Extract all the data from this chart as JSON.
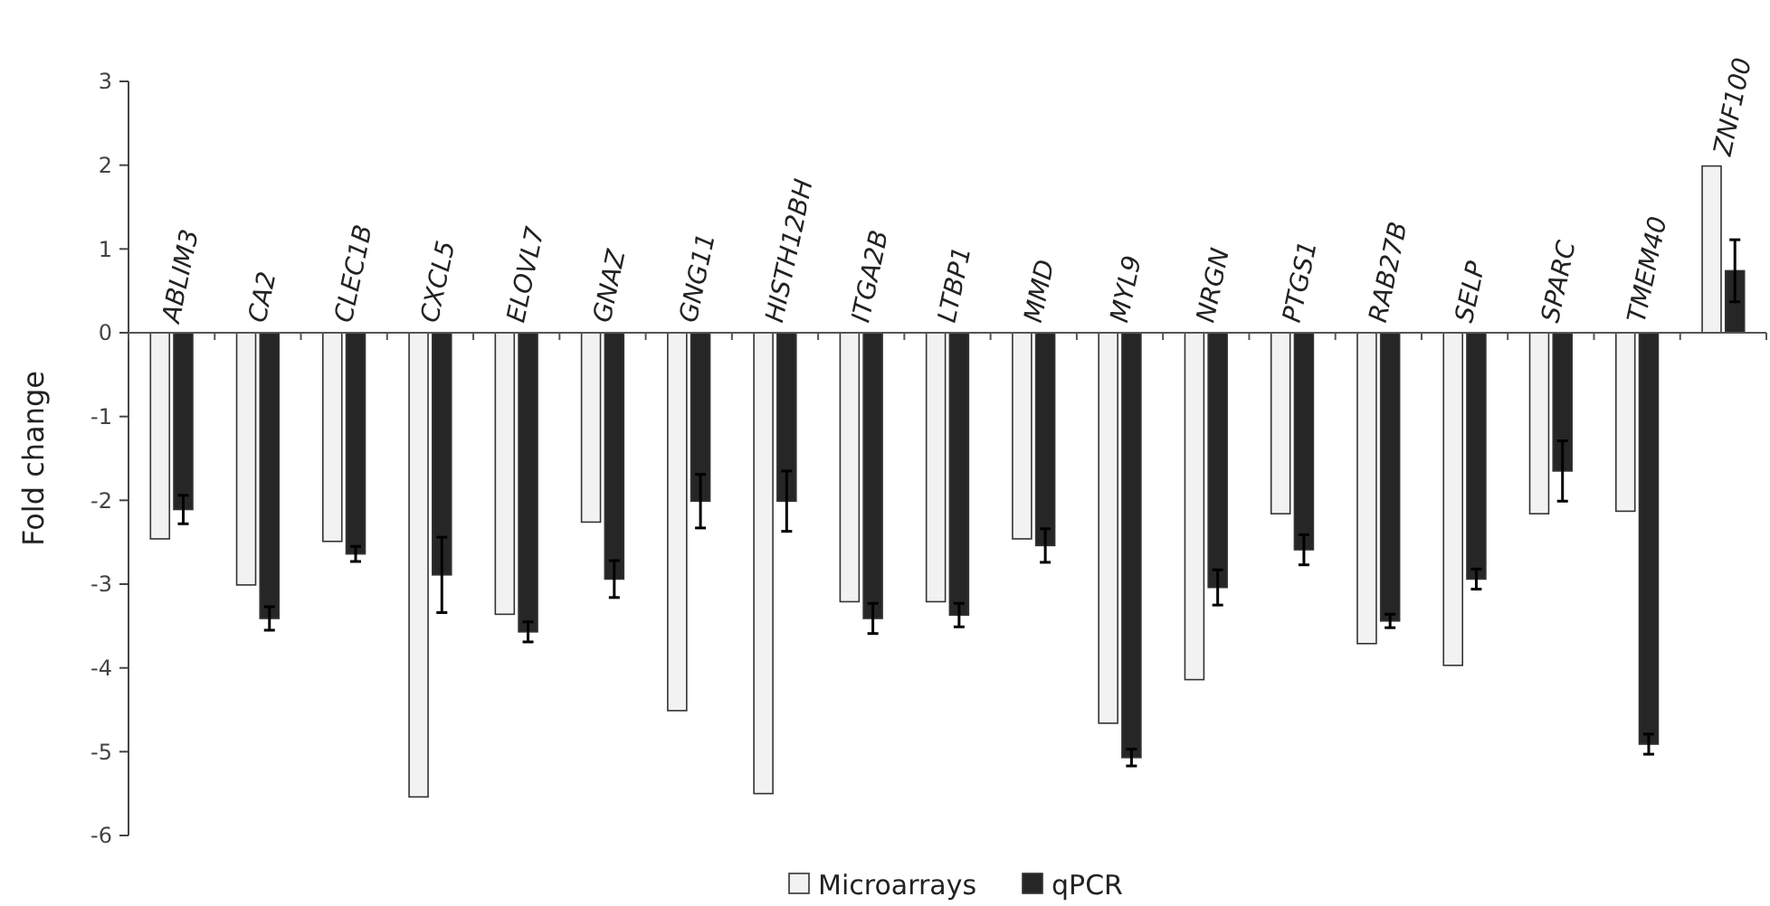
{
  "chart_data": {
    "type": "bar",
    "ylabel": "Fold change",
    "categories": [
      "ABLIM3",
      "CA2",
      "CLEC1B",
      "CXCL5",
      "ELOVL7",
      "GNAZ",
      "GNG11",
      "HISTH12BH",
      "ITGA2B",
      "LTBP1",
      "MMD",
      "MYL9",
      "NRGN",
      "PTGS1",
      "RAB27B",
      "SELP",
      "SPARC",
      "TMEM40",
      "ZNF100"
    ],
    "series": [
      {
        "name": "Microarrays",
        "color": "#f2f2f2",
        "values": [
          -2.46,
          -3.01,
          -2.49,
          -5.54,
          -3.36,
          -2.26,
          -4.51,
          -5.5,
          -3.21,
          -3.21,
          -2.46,
          -4.66,
          -4.14,
          -2.16,
          -3.71,
          -3.97,
          -2.16,
          -2.13,
          1.99
        ]
      },
      {
        "name": "qPCR",
        "color": "#262626",
        "values": [
          -2.11,
          -3.41,
          -2.64,
          -2.89,
          -3.57,
          -2.94,
          -2.01,
          -2.01,
          -3.41,
          -3.37,
          -2.54,
          -5.07,
          -3.04,
          -2.59,
          -3.44,
          -2.94,
          -1.65,
          -4.91,
          0.74
        ],
        "errors": [
          0.17,
          0.14,
          0.09,
          0.45,
          0.12,
          0.22,
          0.32,
          0.36,
          0.18,
          0.14,
          0.2,
          0.1,
          0.21,
          0.18,
          0.08,
          0.12,
          0.36,
          0.12,
          0.37
        ]
      }
    ],
    "ylim": [
      -6,
      3
    ],
    "yticks": [
      -6,
      -5,
      -4,
      -3,
      -2,
      -1,
      0,
      1,
      2,
      3
    ],
    "legend": "bottom",
    "grid": false
  }
}
